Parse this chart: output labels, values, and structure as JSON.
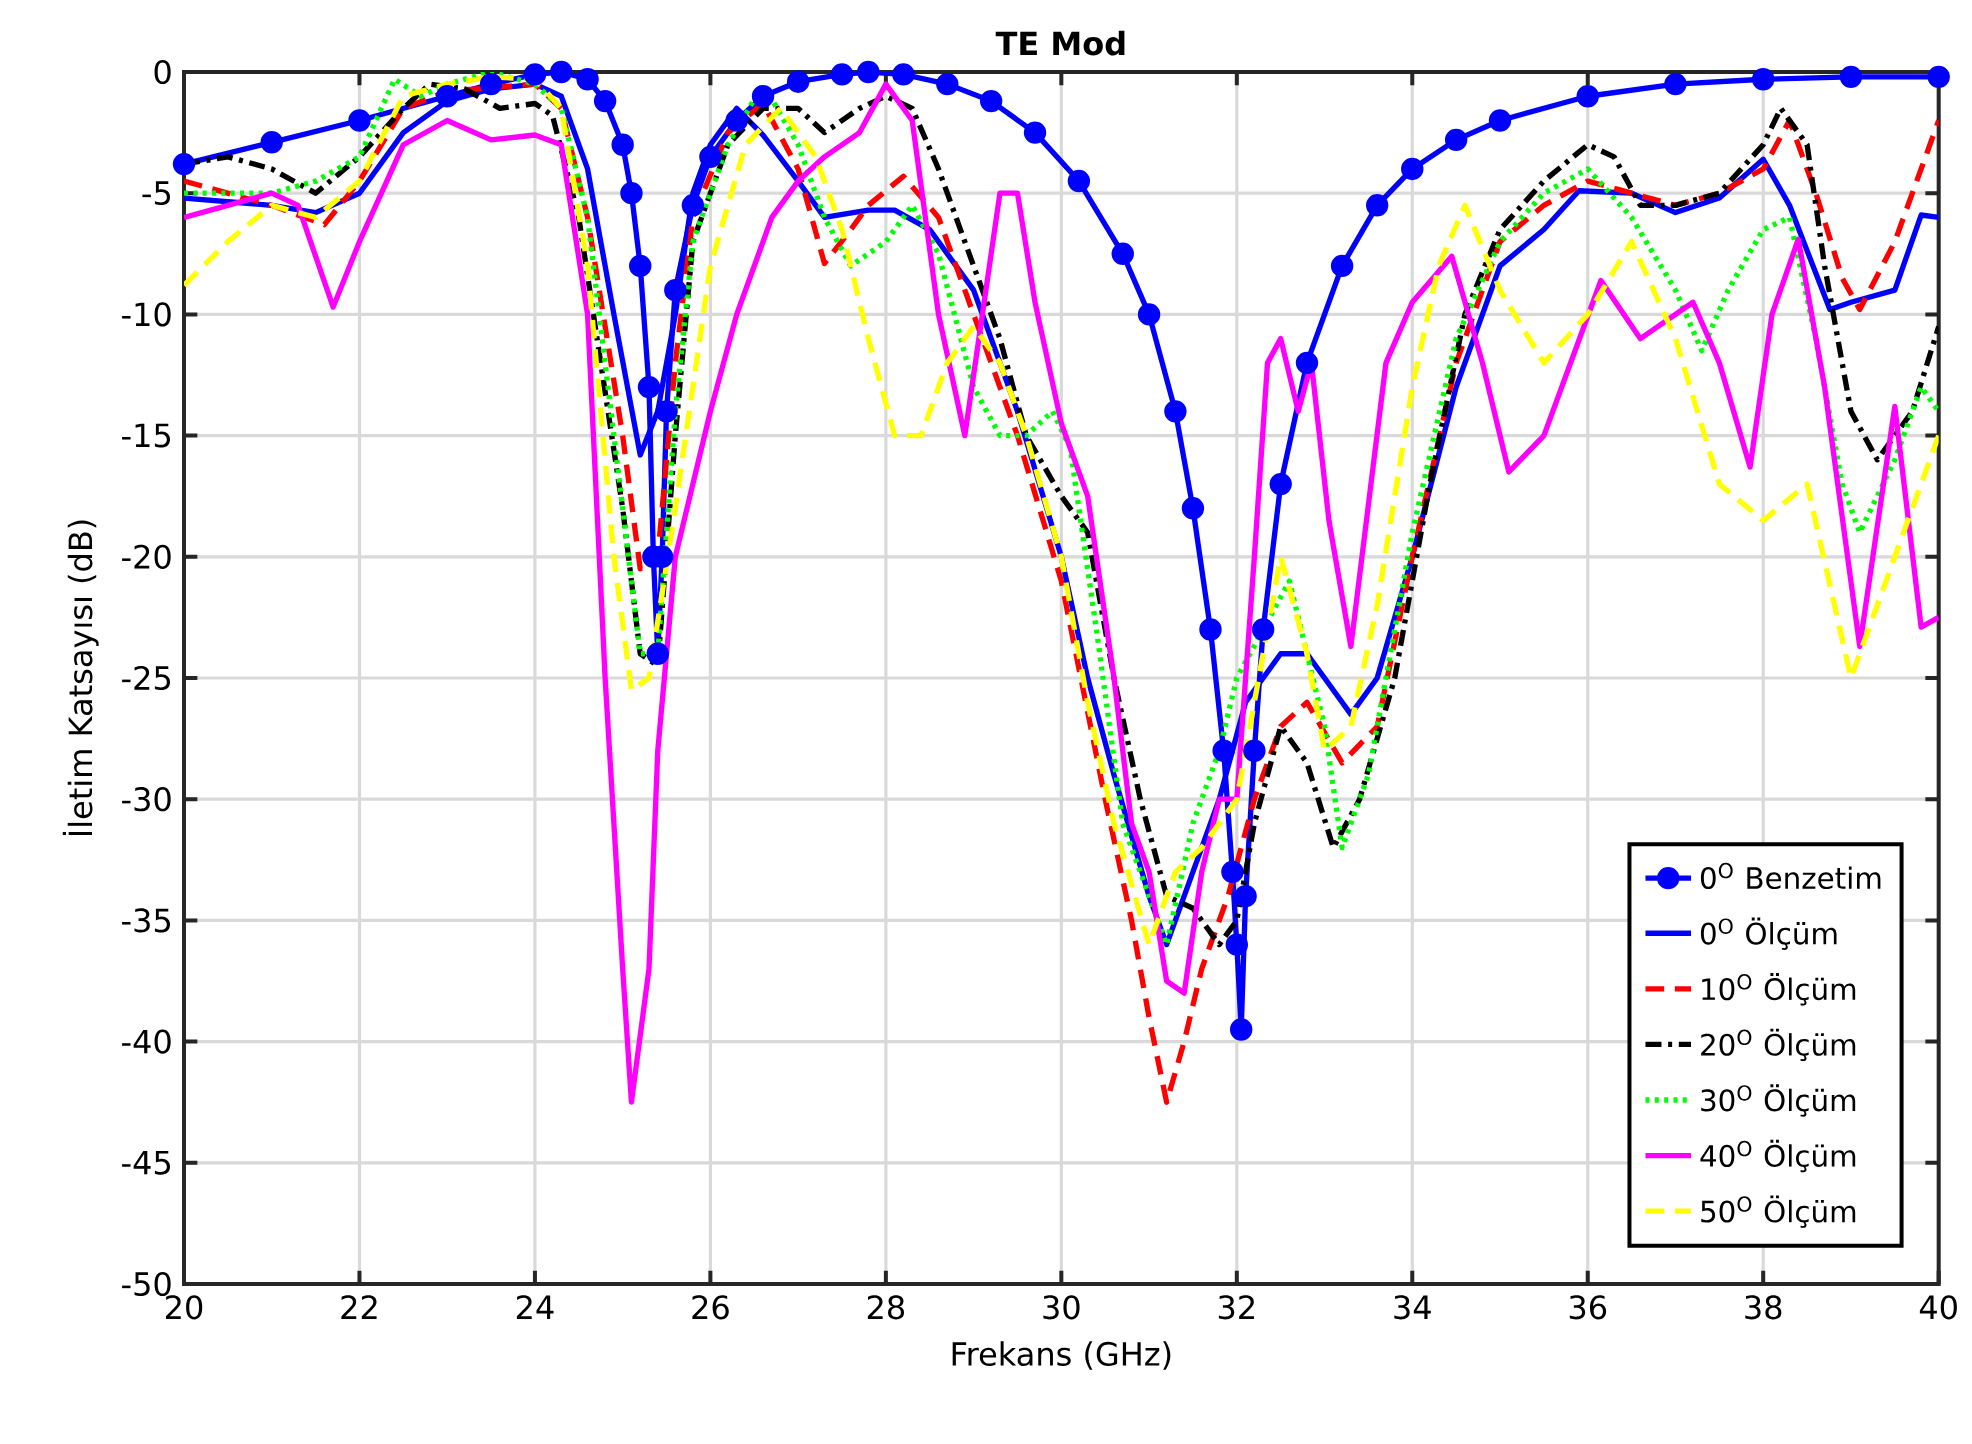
{
  "chart_data": {
    "type": "line",
    "title": "**TE Mod**",
    "xlabel": "Frekans (GHz)",
    "ylabel": "İletim Katsayısı (dB)",
    "xlim": [
      20,
      40
    ],
    "ylim": [
      -50,
      0
    ],
    "xticks": [
      20,
      22,
      24,
      26,
      28,
      30,
      32,
      34,
      36,
      38,
      40
    ],
    "yticks": [
      -50,
      -45,
      -40,
      -35,
      -30,
      -25,
      -20,
      -15,
      -10,
      -5,
      0
    ],
    "grid": true,
    "legend": "bottom right",
    "series": [
      {
        "name": "0$^{O}$ Benzetim",
        "color": "#0000ff",
        "marker": "circle",
        "line_style": "solid",
        "x": [
          20,
          21,
          22,
          23,
          23.5,
          24,
          24.3,
          24.6,
          24.8,
          25.0,
          25.1,
          25.2,
          25.3,
          25.35,
          25.4,
          25.45,
          25.5,
          25.6,
          25.8,
          26.0,
          26.3,
          26.6,
          27.0,
          27.5,
          27.8,
          28.2,
          28.7,
          29.2,
          29.7,
          30.2,
          30.7,
          31.0,
          31.3,
          31.5,
          31.7,
          31.85,
          31.95,
          32.0,
          32.05,
          32.1,
          32.2,
          32.3,
          32.5,
          32.8,
          33.2,
          33.6,
          34.0,
          34.5,
          35,
          36,
          37,
          38,
          39,
          40
        ],
        "values": [
          -3.8,
          -2.9,
          -2.0,
          -1.0,
          -0.5,
          -0.1,
          0,
          -0.3,
          -1.2,
          -3.0,
          -5,
          -8,
          -13,
          -20,
          -24,
          -20,
          -14,
          -9,
          -5.5,
          -3.5,
          -2,
          -1.0,
          -0.4,
          -0.1,
          0,
          -0.1,
          -0.5,
          -1.2,
          -2.5,
          -4.5,
          -7.5,
          -10,
          -14,
          -18,
          -23,
          -28,
          -33,
          -36,
          -39.5,
          -34,
          -28,
          -23,
          -17,
          -12,
          -8,
          -5.5,
          -4,
          -2.8,
          -2.0,
          -1.0,
          -0.5,
          -0.3,
          -0.2,
          -0.2
        ]
      },
      {
        "name": "0$^{O}$ Ölçüm",
        "color": "#0000ff",
        "marker": "none",
        "line_style": "solid",
        "x": [
          20,
          21,
          21.5,
          22,
          22.5,
          23,
          23.5,
          24,
          24.3,
          24.6,
          24.9,
          25.2,
          25.4,
          25.6,
          25.8,
          26,
          26.3,
          26.6,
          27,
          27.3,
          27.8,
          28.1,
          28.5,
          29,
          29.5,
          30,
          30.3,
          30.6,
          31.0,
          31.2,
          31.5,
          31.8,
          32.1,
          32.5,
          32.8,
          33,
          33.3,
          33.6,
          34,
          34.5,
          35,
          35.5,
          35.9,
          36.5,
          37,
          37.5,
          38,
          38.3,
          38.76,
          39,
          39.5,
          39.8,
          40
        ],
        "values": [
          -5.2,
          -5.5,
          -5.8,
          -5,
          -2.5,
          -1.2,
          -0.7,
          -0.5,
          -1,
          -4,
          -10,
          -15.8,
          -14,
          -10,
          -5,
          -3,
          -1.5,
          -2.6,
          -4.5,
          -6,
          -5.7,
          -5.7,
          -6.5,
          -9,
          -14,
          -20,
          -25,
          -29,
          -34,
          -36,
          -33,
          -30,
          -26,
          -24,
          -24,
          -25,
          -26.5,
          -25,
          -20,
          -13,
          -8,
          -6.5,
          -4.9,
          -5,
          -5.8,
          -5.2,
          -3.6,
          -5.5,
          -9.8,
          -9.5,
          -9,
          -5.9,
          -6
        ]
      },
      {
        "name": "10$^{O}$ Ölçüm",
        "color": "#ff0000",
        "marker": "none",
        "line_style": "dashed",
        "x": [
          20,
          21,
          21.6,
          22,
          22.5,
          23,
          24,
          24.3,
          24.6,
          25,
          25.2,
          25.4,
          25.6,
          25.8,
          26.2,
          26.6,
          27,
          27.3,
          27.6,
          27.8,
          28.2,
          28.6,
          29,
          29.5,
          30,
          30.5,
          30.8,
          31.0,
          31.2,
          31.4,
          31.6,
          31.9,
          32.2,
          32.5,
          32.8,
          33.2,
          33.6,
          34,
          34.5,
          35,
          35.5,
          36,
          36.5,
          37,
          37.5,
          38,
          38.3,
          38.6,
          38.9,
          39.1,
          39.5,
          40
        ],
        "values": [
          -4.5,
          -5.5,
          -6.3,
          -4.5,
          -1.5,
          -0.8,
          -0.5,
          -1.5,
          -6,
          -15,
          -20.5,
          -20,
          -12,
          -6,
          -2.5,
          -1.3,
          -4,
          -7.9,
          -6.5,
          -5.5,
          -4.3,
          -6,
          -10,
          -15,
          -21,
          -30,
          -35,
          -39,
          -42.5,
          -40,
          -37,
          -34,
          -30,
          -27,
          -26,
          -28.5,
          -27,
          -20,
          -12,
          -7,
          -5.5,
          -4.5,
          -5,
          -5.5,
          -5,
          -4,
          -2,
          -5,
          -8.5,
          -9.8,
          -7,
          -2
        ]
      },
      {
        "name": "20$^{O}$ Ölçüm",
        "color": "#000000",
        "marker": "none",
        "line_style": "dashdot",
        "x": [
          20,
          20.5,
          21,
          21.5,
          22,
          22.5,
          22.8,
          23.2,
          23.6,
          24,
          24.2,
          24.5,
          25,
          25.2,
          25.4,
          25.6,
          25.8,
          26.2,
          26.6,
          27,
          27.3,
          27.7,
          28,
          28.3,
          28.6,
          29,
          29.3,
          29.6,
          30,
          30.3,
          30.6,
          30.9,
          31.2,
          31.5,
          31.8,
          32.0,
          32.2,
          32.5,
          32.8,
          33.1,
          33.4,
          33.8,
          34.2,
          34.6,
          35,
          35.5,
          36,
          36.3,
          36.6,
          37,
          37.5,
          38,
          38.2,
          38.5,
          38.7,
          39,
          39.3,
          39.7,
          40
        ],
        "values": [
          -3.8,
          -3.5,
          -4,
          -5,
          -3.5,
          -1.5,
          -0.5,
          -0.7,
          -1.5,
          -1.3,
          -1.8,
          -6,
          -18,
          -24,
          -24.5,
          -15,
          -7,
          -3,
          -1.5,
          -1.5,
          -2.5,
          -1.5,
          -1,
          -1.5,
          -4,
          -8,
          -11,
          -15,
          -17.5,
          -19,
          -25,
          -30,
          -34,
          -34.5,
          -36,
          -35,
          -31,
          -27,
          -28.5,
          -32,
          -30,
          -25,
          -17,
          -10,
          -6.5,
          -4.5,
          -3,
          -3.5,
          -5.5,
          -5.5,
          -5,
          -3,
          -1.5,
          -3,
          -8,
          -14,
          -16,
          -14,
          -10.5
        ]
      },
      {
        "name": "30$^{O}$ Ölçüm",
        "color": "#00ff00",
        "marker": "none",
        "line_style": "dotted",
        "x": [
          20,
          21,
          21.5,
          22,
          22.4,
          22.7,
          23,
          23.5,
          24,
          24.3,
          24.6,
          25,
          25.2,
          25.4,
          25.6,
          25.8,
          26.2,
          26.6,
          27,
          27.3,
          27.6,
          28,
          28.3,
          28.6,
          29,
          29.3,
          29.6,
          29.9,
          30.1,
          30.4,
          30.7,
          31.0,
          31.2,
          31.5,
          31.8,
          32.0,
          32.3,
          32.6,
          33.0,
          33.2,
          33.5,
          34,
          34.5,
          35,
          35.5,
          36,
          36.5,
          37,
          37.3,
          37.6,
          38,
          38.3,
          38.6,
          38.9,
          39.1,
          39.5,
          39.8,
          40
        ],
        "values": [
          -5,
          -5,
          -4.5,
          -3.5,
          -0.3,
          -1,
          -0.5,
          0,
          -0.5,
          -1.5,
          -6,
          -18,
          -24,
          -24,
          -14,
          -7,
          -3,
          -0.5,
          -3,
          -6,
          -8,
          -7,
          -5.5,
          -7.5,
          -13,
          -15,
          -15,
          -14,
          -15.5,
          -23,
          -31,
          -34,
          -36,
          -31,
          -28,
          -25,
          -23,
          -21,
          -27,
          -32,
          -29,
          -19,
          -11,
          -7,
          -5,
          -4,
          -6,
          -9,
          -11.5,
          -9,
          -6.5,
          -6,
          -11,
          -17,
          -19,
          -16,
          -13,
          -14
        ]
      },
      {
        "name": "40$^{O}$ Ölçüm",
        "color": "#ff00ff",
        "marker": "none",
        "line_style": "solid",
        "x": [
          20,
          20.5,
          21,
          21.3,
          21.7,
          22,
          22.5,
          23,
          23.5,
          24,
          24.3,
          24.6,
          24.8,
          25.0,
          25.1,
          25.3,
          25.4,
          25.6,
          26,
          26.3,
          26.7,
          27,
          27.3,
          27.7,
          28,
          28.3,
          28.6,
          28.9,
          29.1,
          29.3,
          29.5,
          29.7,
          30,
          30.3,
          30.6,
          30.8,
          31.0,
          31.2,
          31.4,
          31.6,
          31.8,
          32.0,
          32.2,
          32.35,
          32.5,
          32.7,
          32.85,
          33.05,
          33.3,
          33.7,
          34.0,
          34.45,
          34.8,
          35.1,
          35.5,
          36.15,
          36.6,
          37.2,
          37.5,
          37.85,
          38.1,
          38.4,
          38.7,
          39.1,
          39.5,
          39.8,
          40
        ],
        "values": [
          -6,
          -5.5,
          -5,
          -5.5,
          -9.7,
          -7,
          -3,
          -2,
          -2.8,
          -2.6,
          -3,
          -10,
          -25,
          -37,
          -42.5,
          -37,
          -28,
          -20,
          -14,
          -10,
          -6,
          -4.5,
          -3.5,
          -2.5,
          -0.5,
          -2,
          -10,
          -15,
          -10,
          -5,
          -5,
          -9.5,
          -14.5,
          -17.5,
          -25,
          -31,
          -33,
          -37.5,
          -38,
          -33,
          -30,
          -30,
          -20,
          -12,
          -11,
          -14,
          -12,
          -18.5,
          -23.7,
          -12,
          -9.5,
          -7.6,
          -12,
          -16.5,
          -15,
          -8.6,
          -11,
          -9.5,
          -12,
          -16.3,
          -10,
          -6.9,
          -13,
          -23.7,
          -13.8,
          -22.9,
          -22.5
        ]
      },
      {
        "name": "50$^{O}$ Ölçüm",
        "color": "#ffff00",
        "marker": "none",
        "line_style": "dashed",
        "x": [
          20,
          20.5,
          21,
          21.5,
          22,
          22.5,
          23,
          23.5,
          24,
          24.3,
          24.6,
          24.9,
          25.1,
          25.3,
          25.6,
          26,
          26.4,
          26.8,
          27.2,
          27.5,
          27.8,
          28.1,
          28.4,
          28.7,
          29,
          29.3,
          29.6,
          30,
          30.3,
          30.6,
          31,
          31.3,
          31.6,
          32,
          32.3,
          32.5,
          32.8,
          33,
          33.3,
          33.6,
          34,
          34.3,
          34.6,
          35,
          35.5,
          36,
          36.5,
          37,
          37.5,
          38,
          38.5,
          39,
          39.3,
          39.7,
          40
        ],
        "values": [
          -8.8,
          -7,
          -5.5,
          -6,
          -4.5,
          -1,
          -0.5,
          -0.2,
          -0.3,
          -1.5,
          -8,
          -20,
          -25.5,
          -25,
          -18,
          -8,
          -3,
          -1.5,
          -3.5,
          -6.5,
          -11,
          -15,
          -15,
          -12,
          -10.5,
          -12,
          -15,
          -20,
          -26,
          -31,
          -36,
          -33,
          -32,
          -30,
          -24,
          -20,
          -24,
          -28,
          -27,
          -22,
          -13,
          -8,
          -5.5,
          -9,
          -12,
          -10,
          -7,
          -11,
          -17,
          -18.5,
          -17,
          -25,
          -22,
          -18,
          -15
        ]
      }
    ]
  }
}
